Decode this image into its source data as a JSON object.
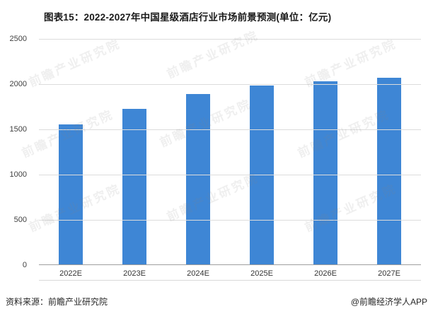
{
  "title": "图表15：2022-2027年中国星级酒店行业市场前景预测(单位：亿元)",
  "watermark": "前瞻产业研究院",
  "footer": {
    "source": "资料来源：前瞻产业研究院",
    "credit": "@前瞻经济学人APP"
  },
  "chart_data": {
    "type": "bar",
    "title": "图表15：2022-2027年中国星级酒店行业市场前景预测(单位：亿元)",
    "categories": [
      "2022E",
      "2023E",
      "2024E",
      "2025E",
      "2026E",
      "2027E"
    ],
    "values": [
      1545,
      1720,
      1880,
      1975,
      2020,
      2060
    ],
    "xlabel": "",
    "ylabel": "",
    "unit": "亿元",
    "ylim": [
      0,
      2500
    ],
    "y_ticks": [
      0,
      500,
      1000,
      1500,
      2000,
      2500
    ],
    "bar_color": "#3E86D5",
    "grid": true,
    "legend": false
  }
}
